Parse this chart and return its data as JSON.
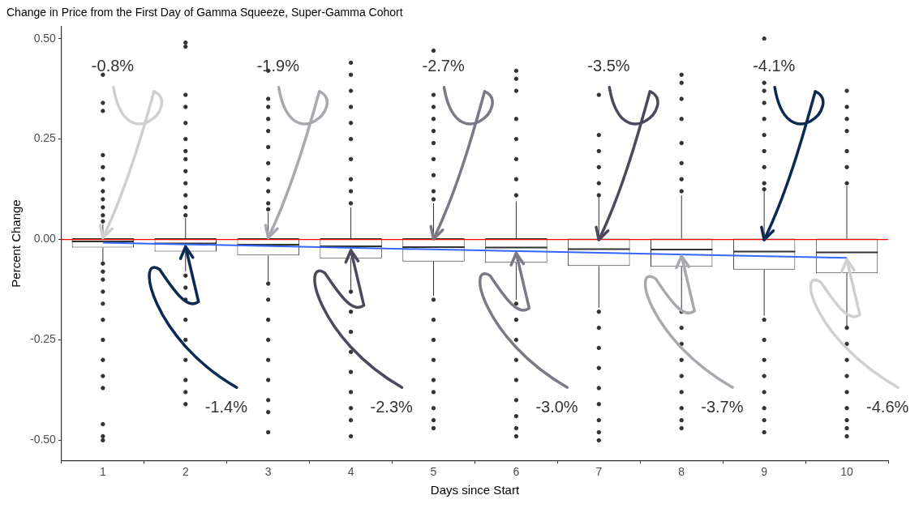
{
  "chart_data": {
    "type": "box",
    "title": "Change in Price from the First Day of Gamma Squeeze, Super-Gamma Cohort",
    "xlabel": "Days since Start",
    "ylabel": "Percent Change",
    "color": "#333333",
    "categories": [
      "1",
      "2",
      "3",
      "4",
      "5",
      "6",
      "7",
      "8",
      "9",
      "10"
    ],
    "boxes": [
      {
        "low": -0.055,
        "q1": -0.02,
        "median": -0.005,
        "q3": 0.003,
        "high": 0.038,
        "outliers": [
          0.41,
          0.34,
          0.32,
          0.21,
          0.18,
          0.15,
          0.12,
          0.1,
          0.08,
          0.06,
          0.045,
          -0.06,
          -0.08,
          -0.1,
          -0.13,
          -0.16,
          -0.2,
          -0.25,
          -0.3,
          -0.34,
          -0.37,
          -0.46,
          -0.49,
          -0.5
        ]
      },
      {
        "low": -0.08,
        "q1": -0.03,
        "median": -0.01,
        "q3": 0.003,
        "high": 0.053,
        "outliers": [
          0.49,
          0.48,
          0.36,
          0.33,
          0.29,
          0.25,
          0.22,
          0.2,
          0.17,
          0.14,
          0.11,
          0.08,
          0.06,
          -0.09,
          -0.12,
          -0.15,
          -0.2,
          -0.25,
          -0.3,
          -0.35,
          -0.38,
          -0.41
        ]
      },
      {
        "low": -0.105,
        "q1": -0.04,
        "median": -0.013,
        "q3": 0.003,
        "high": 0.068,
        "outliers": [
          0.42,
          0.35,
          0.33,
          0.3,
          0.27,
          0.23,
          0.19,
          0.15,
          0.12,
          0.09,
          0.075,
          -0.11,
          -0.15,
          -0.2,
          -0.25,
          -0.3,
          -0.35,
          -0.4,
          -0.43,
          -0.48
        ]
      },
      {
        "low": -0.125,
        "q1": -0.048,
        "median": -0.017,
        "q3": 0.003,
        "high": 0.08,
        "outliers": [
          0.44,
          0.41,
          0.37,
          0.33,
          0.29,
          0.25,
          0.2,
          0.15,
          0.12,
          0.09,
          -0.13,
          -0.18,
          -0.23,
          -0.28,
          -0.33,
          -0.38,
          -0.42,
          -0.45,
          -0.49
        ]
      },
      {
        "low": -0.14,
        "q1": -0.055,
        "median": -0.019,
        "q3": 0.003,
        "high": 0.09,
        "outliers": [
          0.47,
          0.36,
          0.33,
          0.3,
          0.27,
          0.24,
          0.2,
          0.16,
          0.12,
          0.1,
          -0.15,
          -0.2,
          -0.25,
          -0.3,
          -0.35,
          -0.38,
          -0.42,
          -0.45,
          -0.47
        ]
      },
      {
        "low": -0.15,
        "q1": -0.058,
        "median": -0.02,
        "q3": 0.003,
        "high": 0.095,
        "outliers": [
          0.42,
          0.4,
          0.37,
          0.3,
          0.25,
          0.2,
          0.15,
          0.11,
          -0.16,
          -0.2,
          -0.25,
          -0.3,
          -0.35,
          -0.4,
          -0.44,
          -0.47,
          -0.49
        ]
      },
      {
        "low": -0.17,
        "q1": -0.066,
        "median": -0.024,
        "q3": 0.002,
        "high": 0.105,
        "outliers": [
          0.36,
          0.26,
          0.22,
          0.18,
          0.14,
          0.11,
          -0.18,
          -0.22,
          -0.27,
          -0.32,
          -0.37,
          -0.41,
          -0.45,
          -0.48,
          -0.5
        ]
      },
      {
        "low": -0.175,
        "q1": -0.068,
        "median": -0.025,
        "q3": 0.002,
        "high": 0.11,
        "outliers": [
          0.41,
          0.39,
          0.35,
          0.3,
          0.24,
          0.19,
          0.15,
          0.12,
          -0.18,
          -0.22,
          -0.26,
          -0.3,
          -0.34,
          -0.38,
          -0.42,
          -0.45,
          -0.47
        ]
      },
      {
        "low": -0.19,
        "q1": -0.075,
        "median": -0.03,
        "q3": 0.002,
        "high": 0.12,
        "outliers": [
          0.5,
          0.39,
          0.37,
          0.34,
          0.3,
          0.26,
          0.22,
          0.18,
          0.14,
          0.125,
          -0.2,
          -0.25,
          -0.3,
          -0.34,
          -0.38,
          -0.42,
          -0.45,
          -0.48
        ]
      },
      {
        "low": -0.215,
        "q1": -0.084,
        "median": -0.032,
        "q3": 0.002,
        "high": 0.133,
        "outliers": [
          0.37,
          0.33,
          0.3,
          0.27,
          0.22,
          0.18,
          0.14,
          -0.22,
          -0.26,
          -0.3,
          -0.34,
          -0.38,
          -0.42,
          -0.45,
          -0.47,
          -0.49
        ]
      }
    ],
    "series": [
      {
        "type": "line",
        "x": [
          "1",
          "10"
        ],
        "values": [
          -0.008,
          -0.046
        ],
        "color": "#3366ff"
      }
    ],
    "ylim": [
      -0.55,
      0.53
    ],
    "yticks": [
      {
        "value": -0.5,
        "label": "-0.50"
      },
      {
        "value": -0.25,
        "label": "-0.25"
      },
      {
        "value": 0,
        "label": "0.00"
      },
      {
        "value": 0.25,
        "label": "0.25"
      },
      {
        "value": 0.5,
        "label": "0.50"
      }
    ],
    "ref_lines": [
      {
        "axis": "y",
        "value": 0,
        "color": "#ff0000"
      }
    ],
    "annotations": [
      {
        "text": "-0.8%",
        "x": "1",
        "y": 0.0
      },
      {
        "text": "-1.4%",
        "x": "2",
        "y": -0.014
      },
      {
        "text": "-1.9%",
        "x": "3",
        "y": 0.0
      },
      {
        "text": "-2.3%",
        "x": "4",
        "y": -0.023
      },
      {
        "text": "-2.7%",
        "x": "5",
        "y": -0.003
      },
      {
        "text": "-3.0%",
        "x": "6",
        "y": -0.03
      },
      {
        "text": "-3.5%",
        "x": "7",
        "y": -0.005
      },
      {
        "text": "-3.7%",
        "x": "8",
        "y": -0.037
      },
      {
        "text": "-4.1%",
        "x": "9",
        "y": -0.005
      },
      {
        "text": "-4.6%",
        "x": "10",
        "y": -0.046
      }
    ],
    "grid": false,
    "legend": false
  }
}
